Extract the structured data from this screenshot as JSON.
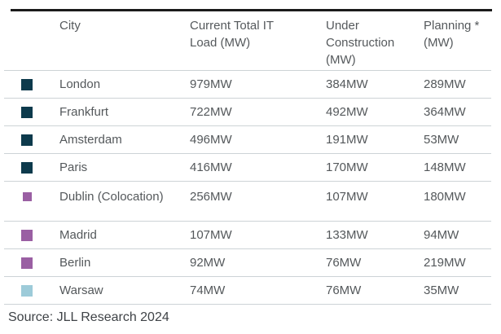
{
  "colors": {
    "top_rule": "#1b1b1b",
    "separator": "#cdd3d6",
    "text": "#54585b",
    "teal_marker": "#0d3a4c",
    "purple_marker": "#9a5fa3",
    "light_blue_marker": "#9dcbd9"
  },
  "chart_data": {
    "type": "table",
    "title": "",
    "columns": [
      "City",
      "Current Total IT Load (MW)",
      "Under Construction (MW)",
      "Planning * (MW)"
    ],
    "rows": [
      {
        "city": "London",
        "marker_color": "#0d3a4c",
        "current_total": "979MW",
        "under_construction": "384MW",
        "planning": "289MW"
      },
      {
        "city": "Frankfurt",
        "marker_color": "#0d3a4c",
        "current_total": "722MW",
        "under_construction": "492MW",
        "planning": "364MW"
      },
      {
        "city": "Amsterdam",
        "marker_color": "#0d3a4c",
        "current_total": "496MW",
        "under_construction": "191MW",
        "planning": "53MW"
      },
      {
        "city": "Paris",
        "marker_color": "#0d3a4c",
        "current_total": "416MW",
        "under_construction": "170MW",
        "planning": "148MW"
      },
      {
        "city": "Dublin (Colocation)",
        "marker_color": "#9a5fa3",
        "current_total": "256MW",
        "under_construction": "107MW",
        "planning": "180MW",
        "small_marker": true,
        "tall_row": true
      },
      {
        "city": "Madrid",
        "marker_color": "#9a5fa3",
        "current_total": "107MW",
        "under_construction": "133MW",
        "planning": "94MW"
      },
      {
        "city": "Berlin",
        "marker_color": "#9a5fa3",
        "current_total": "92MW",
        "under_construction": "76MW",
        "planning": "219MW"
      },
      {
        "city": "Warsaw",
        "marker_color": "#9dcbd9",
        "current_total": "74MW",
        "under_construction": "76MW",
        "planning": "35MW"
      }
    ],
    "source": "Source: JLL Research 2024"
  }
}
